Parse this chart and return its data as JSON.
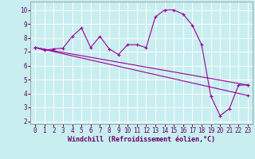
{
  "xlabel": "Windchill (Refroidissement éolien,°C)",
  "bg_color": "#c8eef0",
  "grid_color": "#ffffff",
  "line_color": "#990099",
  "xlim": [
    -0.5,
    23.5
  ],
  "ylim": [
    1.8,
    10.6
  ],
  "x_ticks": [
    0,
    1,
    2,
    3,
    4,
    5,
    6,
    7,
    8,
    9,
    10,
    11,
    12,
    13,
    14,
    15,
    16,
    17,
    18,
    19,
    20,
    21,
    22,
    23
  ],
  "y_ticks": [
    2,
    3,
    4,
    5,
    6,
    7,
    8,
    9,
    10
  ],
  "line1_x": [
    0,
    1,
    2,
    3,
    4,
    5,
    6,
    7,
    8,
    9,
    10,
    11,
    12,
    13,
    14,
    15,
    16,
    17,
    18,
    19,
    20,
    21,
    22,
    23
  ],
  "line1_y": [
    7.3,
    7.1,
    7.2,
    7.25,
    8.1,
    8.7,
    7.3,
    8.1,
    7.2,
    6.8,
    7.5,
    7.5,
    7.3,
    9.5,
    10.0,
    10.0,
    9.7,
    8.9,
    7.5,
    3.8,
    2.4,
    2.9,
    4.6,
    4.6
  ],
  "line2_x": [
    0,
    23
  ],
  "line2_y": [
    7.3,
    4.6
  ],
  "line3_x": [
    0,
    23
  ],
  "line3_y": [
    7.3,
    3.85
  ],
  "tick_fontsize": 5.5,
  "xlabel_fontsize": 6.0
}
